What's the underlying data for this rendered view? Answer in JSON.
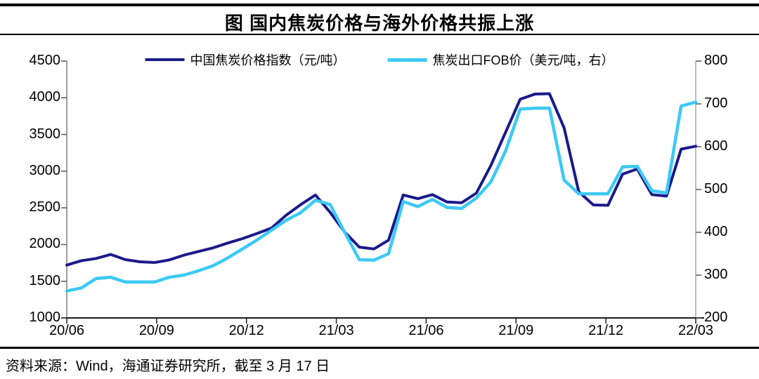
{
  "title": "图 国内焦炭价格与海外价格共振上涨",
  "source_note": "资料来源：Wind，海通证券研究所，截至 3 月 17 日",
  "chart_data": {
    "type": "line",
    "title": "图 国内焦炭价格与海外价格共振上涨",
    "legend_position": "top",
    "grid": false,
    "x_ticks": [
      "20/06",
      "20/09",
      "20/12",
      "21/03",
      "21/06",
      "21/09",
      "21/12",
      "22/03"
    ],
    "left_axis": {
      "min": 1000,
      "max": 4500,
      "ticks": [
        4500,
        4000,
        3500,
        3000,
        2500,
        2000,
        1500,
        1000
      ]
    },
    "right_axis": {
      "min": 200,
      "max": 800,
      "ticks": [
        800,
        700,
        600,
        500,
        400,
        300,
        200
      ]
    },
    "x": [
      "2020-06-01",
      "2020-06-16",
      "2020-07-01",
      "2020-07-16",
      "2020-08-01",
      "2020-08-16",
      "2020-09-01",
      "2020-09-16",
      "2020-10-01",
      "2020-10-16",
      "2020-11-01",
      "2020-11-16",
      "2020-12-01",
      "2020-12-16",
      "2021-01-01",
      "2021-01-16",
      "2021-02-01",
      "2021-02-16",
      "2021-03-01",
      "2021-03-16",
      "2021-04-01",
      "2021-04-16",
      "2021-05-01",
      "2021-05-16",
      "2021-06-01",
      "2021-06-16",
      "2021-07-01",
      "2021-07-16",
      "2021-08-01",
      "2021-08-16",
      "2021-09-01",
      "2021-09-16",
      "2021-10-01",
      "2021-10-16",
      "2021-11-01",
      "2021-11-16",
      "2021-12-01",
      "2021-12-16",
      "2022-01-01",
      "2022-01-16",
      "2022-02-01",
      "2022-02-16",
      "2022-03-01",
      "2022-03-17"
    ],
    "series": [
      {
        "name": "中国焦炭价格指数（元/吨）",
        "axis": "left",
        "unit": "元/吨",
        "color": "#1a1a8a",
        "values": [
          1720,
          1780,
          1810,
          1865,
          1795,
          1765,
          1755,
          1790,
          1855,
          1905,
          1955,
          2020,
          2080,
          2150,
          2225,
          2400,
          2545,
          2675,
          2440,
          2170,
          1965,
          1940,
          2060,
          2675,
          2625,
          2680,
          2580,
          2570,
          2700,
          3080,
          3530,
          3980,
          4050,
          4055,
          3590,
          2720,
          2540,
          2535,
          2960,
          3030,
          2680,
          2660,
          3300,
          3340
        ]
      },
      {
        "name": "焦炭出口FOB价（美元/吨，右）",
        "axis": "right",
        "unit": "美元/吨",
        "color": "#3cc9f5",
        "values": [
          263,
          270,
          292,
          295,
          284,
          284,
          284,
          295,
          300,
          310,
          322,
          340,
          361,
          382,
          405,
          428,
          446,
          475,
          465,
          400,
          336,
          335,
          350,
          472,
          460,
          477,
          458,
          456,
          480,
          518,
          590,
          688,
          690,
          690,
          522,
          490,
          490,
          490,
          553,
          554,
          497,
          492,
          695,
          704
        ]
      }
    ]
  }
}
